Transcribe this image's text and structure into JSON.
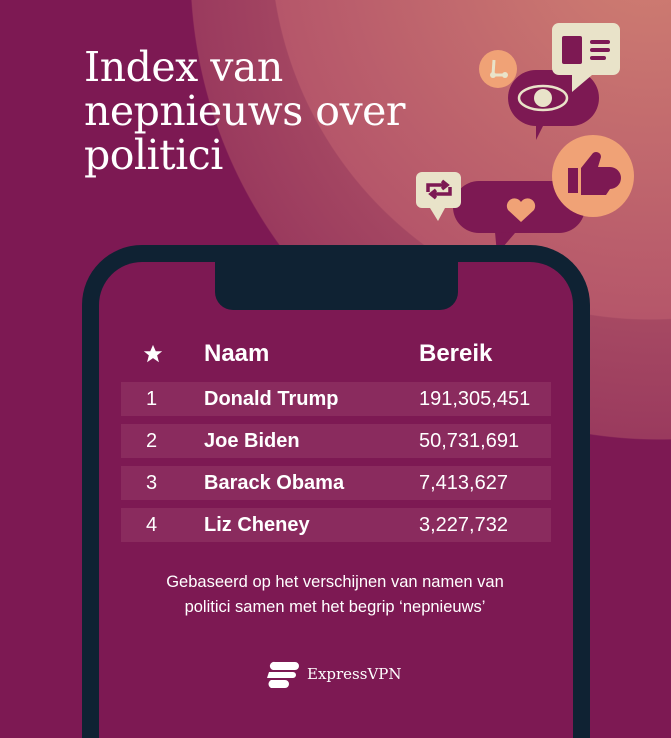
{
  "title": "Index van nepnieuws over politici",
  "title_lines": [
    "Index van",
    "nepnieuws over",
    "politici"
  ],
  "table": {
    "headers": {
      "rank_icon": "star-icon",
      "name": "Naam",
      "value": "Bereik"
    },
    "rows": [
      {
        "rank": "1",
        "name": "Donald Trump",
        "value": "191,305,451"
      },
      {
        "rank": "2",
        "name": "Joe Biden",
        "value": "50,731,691"
      },
      {
        "rank": "3",
        "name": "Barack Obama",
        "value": "7,413,627"
      },
      {
        "rank": "4",
        "name": "Liz Cheney",
        "value": "3,227,732"
      }
    ]
  },
  "note_lines": [
    "Gebaseerd op het verschijnen van namen van",
    "politici samen met het begrip ‘nepnieuws’"
  ],
  "brand": "ExpressVPN",
  "colors": {
    "background": "#7d1953",
    "phone": "#0f2233",
    "accent": "#f0a276",
    "cream": "#e9e3c9"
  }
}
